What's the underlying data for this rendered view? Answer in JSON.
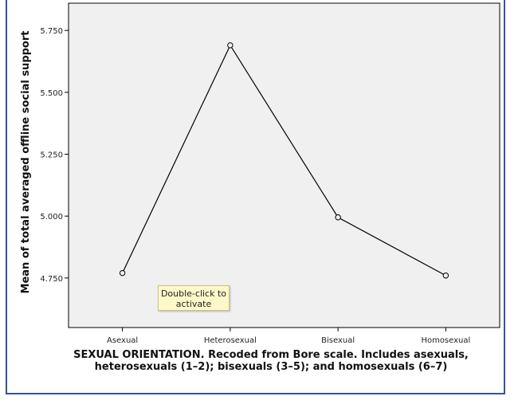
{
  "chart_data": {
    "type": "line",
    "categories": [
      "Asexual",
      "Heterosexual",
      "Bisexual",
      "Homosexual"
    ],
    "values": [
      4.77,
      5.69,
      4.995,
      4.76
    ],
    "ylabel": "Mean of total averaged offline social support",
    "xlabel_lines": [
      "SEXUAL ORIENTATION. Recoded from Bore scale. Includes asexuals,",
      "heterosexuals (1–2); bisexuals (3–5); and homosexuals (6–7)"
    ],
    "yticks": [
      4.75,
      5.0,
      5.25,
      5.5,
      5.75
    ],
    "ytick_labels": [
      "4.750",
      "5.000",
      "5.250",
      "5.500",
      "5.750"
    ],
    "ylim": [
      4.55,
      5.86
    ],
    "grid": false,
    "plot_background": "#f0f0f0",
    "line_color": "#000000"
  },
  "tooltip": {
    "text": "Double-click to activate",
    "lines": [
      "Double-click to",
      "activate"
    ]
  },
  "frame_border_color": "#34559e"
}
